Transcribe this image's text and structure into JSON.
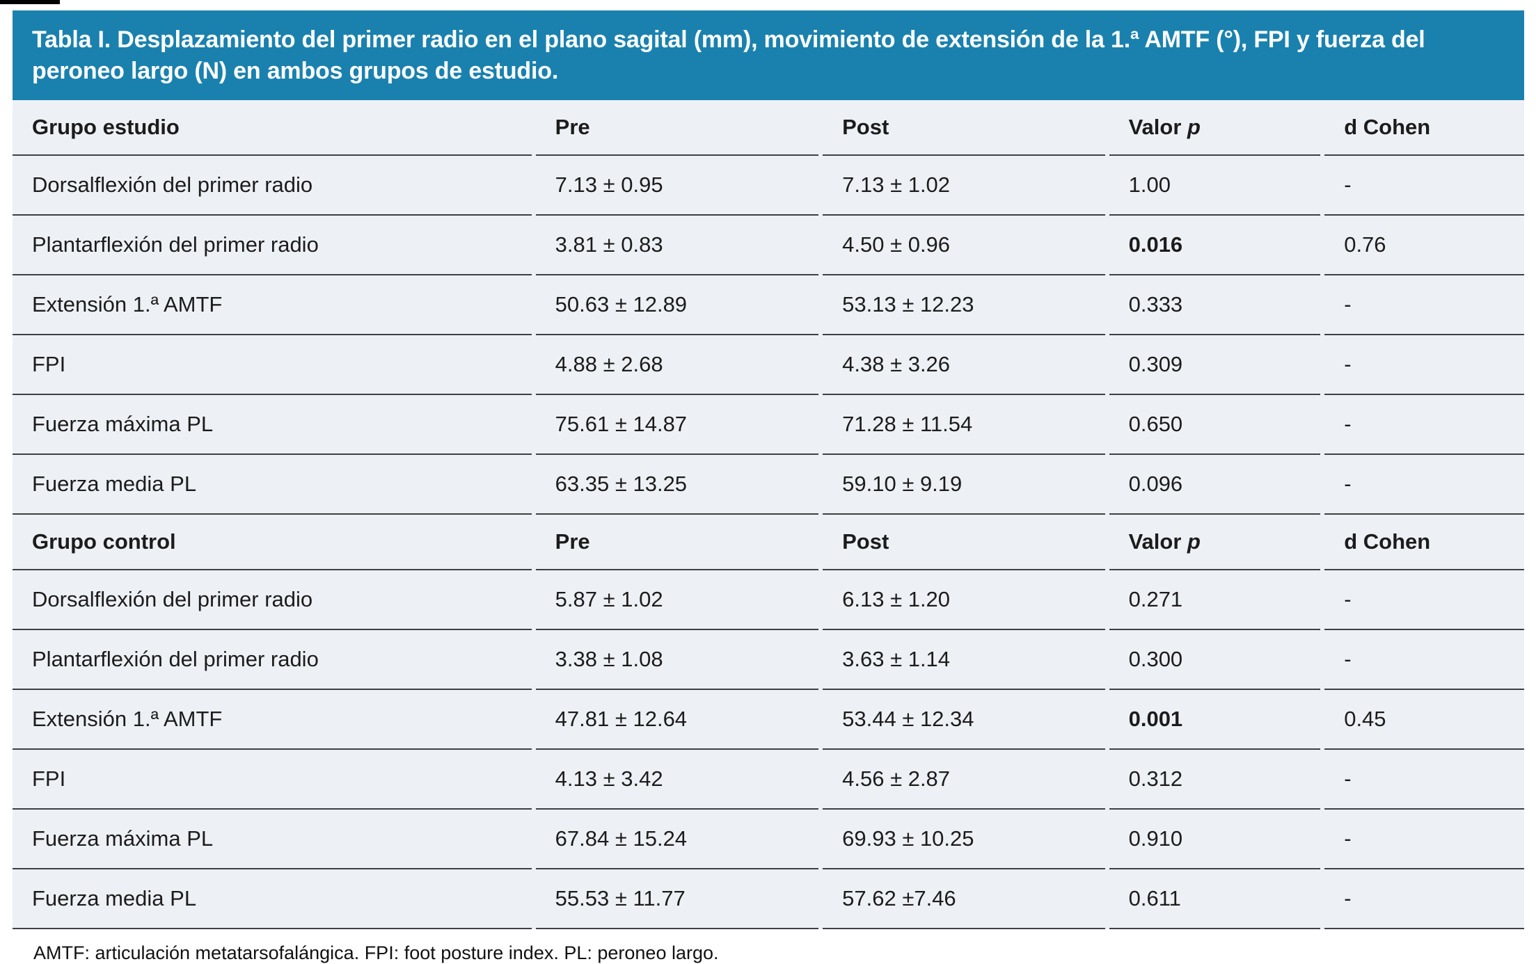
{
  "title": "Tabla I. Desplazamiento del primer radio en el plano sagital (mm), movimiento de extensión de la 1.ª AMTF (°), FPI y fuerza del peroneo largo (N) en ambos grupos de estudio.",
  "footnote": "AMTF: articulación metatarsofalángica. FPI: foot posture index. PL: peroneo largo.",
  "colors": {
    "title_band_bg": "#1a81ae",
    "title_text": "#ffffff",
    "row_bg": "#edf1f6",
    "divider": "#3e4043",
    "body_text": "#1c1c1c"
  },
  "sections": [
    {
      "header": {
        "label": "Grupo estudio",
        "pre": "Pre",
        "post": "Post",
        "valor_prefix": "Valor ",
        "valor_italic": "p",
        "d_cohen": "d Cohen"
      },
      "rows": [
        {
          "label": "Dorsalflexión del primer radio",
          "pre": "7.13 ± 0.95",
          "post": "7.13 ± 1.02",
          "p": "1.00",
          "p_bold": false,
          "d": "-"
        },
        {
          "label": "Plantarflexión del primer radio",
          "pre": "3.81 ± 0.83",
          "post": "4.50 ± 0.96",
          "p": "0.016",
          "p_bold": true,
          "d": "0.76"
        },
        {
          "label": "Extensión 1.ª AMTF",
          "pre": "50.63 ± 12.89",
          "post": "53.13 ± 12.23",
          "p": "0.333",
          "p_bold": false,
          "d": "-"
        },
        {
          "label": "FPI",
          "pre": "4.88 ± 2.68",
          "post": "4.38 ± 3.26",
          "p": "0.309",
          "p_bold": false,
          "d": "-"
        },
        {
          "label": "Fuerza máxima PL",
          "pre": "75.61 ± 14.87",
          "post": "71.28 ± 11.54",
          "p": "0.650",
          "p_bold": false,
          "d": "-"
        },
        {
          "label": "Fuerza media PL",
          "pre": "63.35 ± 13.25",
          "post": "59.10 ± 9.19",
          "p": "0.096",
          "p_bold": false,
          "d": "-"
        }
      ]
    },
    {
      "header": {
        "label": "Grupo control",
        "pre": "Pre",
        "post": "Post",
        "valor_prefix": "Valor ",
        "valor_italic": "p",
        "d_cohen": "d Cohen"
      },
      "rows": [
        {
          "label": "Dorsalflexión del primer radio",
          "pre": "5.87 ± 1.02",
          "post": "6.13 ± 1.20",
          "p": "0.271",
          "p_bold": false,
          "d": "-"
        },
        {
          "label": "Plantarflexión del primer radio",
          "pre": "3.38 ± 1.08",
          "post": "3.63 ± 1.14",
          "p": "0.300",
          "p_bold": false,
          "d": "-"
        },
        {
          "label": "Extensión 1.ª AMTF",
          "pre": "47.81 ± 12.64",
          "post": "53.44 ± 12.34",
          "p": "0.001",
          "p_bold": true,
          "d": "0.45"
        },
        {
          "label": "FPI",
          "pre": "4.13 ± 3.42",
          "post": "4.56 ± 2.87",
          "p": "0.312",
          "p_bold": false,
          "d": "-"
        },
        {
          "label": "Fuerza máxima PL",
          "pre": "67.84 ± 15.24",
          "post": "69.93 ± 10.25",
          "p": "0.910",
          "p_bold": false,
          "d": "-"
        },
        {
          "label": "Fuerza media PL",
          "pre": "55.53 ± 11.77",
          "post": "57.62 ±7.46",
          "p": "0.611",
          "p_bold": false,
          "d": "-"
        }
      ]
    }
  ]
}
